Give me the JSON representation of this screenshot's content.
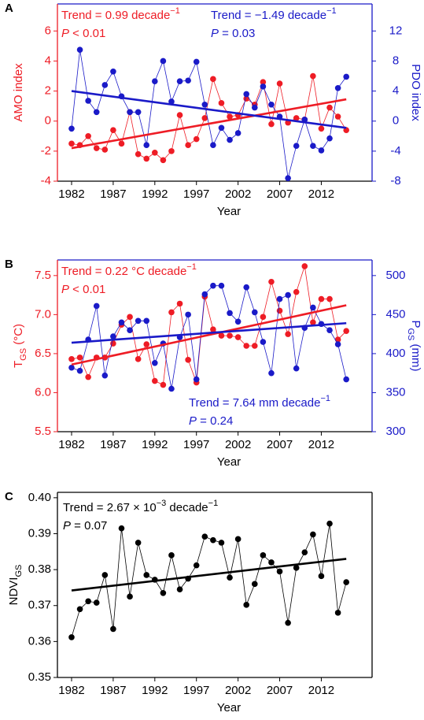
{
  "chart_data": [
    {
      "type": "line",
      "panel": "A",
      "x_label": "Year",
      "y_label": [
        {
          "text": "AMO index"
        }
      ],
      "y2_label": [
        {
          "text": "PDO index"
        }
      ],
      "x": [
        1982,
        1983,
        1984,
        1985,
        1986,
        1987,
        1988,
        1989,
        1990,
        1991,
        1992,
        1993,
        1994,
        1995,
        1996,
        1997,
        1998,
        1999,
        2000,
        2001,
        2002,
        2003,
        2004,
        2005,
        2006,
        2007,
        2008,
        2009,
        2010,
        2011,
        2012,
        2013,
        2014,
        2015
      ],
      "xlim": [
        1980.3,
        2018.1
      ],
      "xticks": [
        1982,
        1987,
        1992,
        1997,
        2002,
        2007,
        2012
      ],
      "ylim": [
        -4,
        7.8
      ],
      "yticks": [
        -4,
        -2,
        0,
        2,
        4,
        6
      ],
      "y2lim": [
        -8,
        15.6
      ],
      "y2ticks": [
        -8,
        -4,
        0,
        4,
        8,
        12
      ],
      "series": [
        {
          "color": "#ee1c25",
          "values": [
            -1.5,
            -1.6,
            -1.0,
            -1.8,
            -1.9,
            -0.6,
            -1.5,
            0.6,
            -2.2,
            -2.5,
            -2.1,
            -2.6,
            -2.0,
            0.4,
            -1.6,
            -1.2,
            0.2,
            2.8,
            1.2,
            0.3,
            0.4,
            1.5,
            1.1,
            2.6,
            -0.2,
            2.5,
            -0.1,
            0.2,
            0.1,
            3.0,
            -0.5,
            0.9,
            0.3,
            -0.6
          ]
        },
        {
          "color": "#1a1ac8",
          "axis": "y2",
          "values": [
            -1,
            9.5,
            2.7,
            1.2,
            4.8,
            6.6,
            3.3,
            1.2,
            1.2,
            -3.2,
            5.3,
            8,
            2.6,
            5.3,
            5.4,
            7.9,
            2.2,
            -3.2,
            -0.9,
            -2.5,
            -1.6,
            3.6,
            1.8,
            4.6,
            2.2,
            0.6,
            -7.6,
            -3.3,
            0.2,
            -3.3,
            -3.9,
            -2.3,
            4.4,
            5.9
          ]
        }
      ],
      "trend_lines": [
        {
          "color": "#ee1c25",
          "x": [
            1982,
            2015
          ],
          "values": [
            -1.8,
            1.45
          ]
        },
        {
          "color": "#1a1ac8",
          "axis": "y2",
          "x": [
            1982,
            2015
          ],
          "values": [
            4.0,
            -0.9
          ]
        }
      ],
      "annotations": [
        {
          "color": "#ee1c25",
          "lines": [
            [
              {
                "text": "Trend = 0.99 decade"
              },
              {
                "sup": "−1"
              }
            ],
            [
              {
                "italic": "P"
              },
              {
                "text": " < 0.01"
              }
            ]
          ]
        },
        {
          "color": "#1a1ac8",
          "lines": [
            [
              {
                "text": "Trend = −1.49 decade"
              },
              {
                "sup": "−1"
              }
            ],
            [
              {
                "italic": "P"
              },
              {
                "text": " = 0.03"
              }
            ]
          ]
        }
      ]
    },
    {
      "type": "line",
      "panel": "B",
      "x_label": "Year",
      "y_label": [
        {
          "text": "T"
        },
        {
          "sub": "GS"
        },
        {
          "text": " (°C)"
        }
      ],
      "y2_label": [
        {
          "text": "P"
        },
        {
          "sub": "GS"
        },
        {
          "text": " (mm)"
        }
      ],
      "x": [
        1982,
        1983,
        1984,
        1985,
        1986,
        1987,
        1988,
        1989,
        1990,
        1991,
        1992,
        1993,
        1994,
        1995,
        1996,
        1997,
        1998,
        1999,
        2000,
        2001,
        2002,
        2003,
        2004,
        2005,
        2006,
        2007,
        2008,
        2009,
        2010,
        2011,
        2012,
        2013,
        2014,
        2015
      ],
      "xlim": [
        1980.3,
        2018.1
      ],
      "xticks": [
        1982,
        1987,
        1992,
        1997,
        2002,
        2007,
        2012
      ],
      "ylim": [
        5.5,
        7.7
      ],
      "yticks": [
        5.5,
        {
          "value": 6,
          "label": "6.0"
        },
        6.5,
        {
          "value": 7,
          "label": "7.0"
        },
        7.5
      ],
      "y2lim": [
        300,
        520
      ],
      "y2ticks": [
        300,
        350,
        400,
        450,
        500
      ],
      "series": [
        {
          "color": "#ee1c25",
          "values": [
            6.43,
            6.45,
            6.2,
            6.45,
            6.45,
            6.63,
            6.87,
            6.97,
            6.43,
            6.62,
            6.15,
            6.1,
            7.03,
            7.14,
            6.42,
            6.13,
            7.23,
            6.81,
            6.73,
            6.73,
            6.71,
            6.6,
            6.6,
            6.97,
            7.42,
            7.05,
            6.75,
            7.29,
            7.62,
            6.9,
            7.2,
            7.2,
            6.68,
            6.79
          ]
        },
        {
          "color": "#1a1ac8",
          "axis": "y2",
          "values": [
            382,
            378,
            418,
            461,
            372,
            422,
            440,
            430,
            442,
            442,
            388,
            413,
            355,
            421,
            450,
            367,
            476,
            487,
            487,
            452,
            441,
            485,
            453,
            415,
            375,
            470,
            475,
            381,
            433,
            459,
            438,
            430,
            412,
            367
          ]
        }
      ],
      "trend_lines": [
        {
          "color": "#ee1c25",
          "x": [
            1982,
            2015
          ],
          "values": [
            6.36,
            7.12
          ]
        },
        {
          "color": "#1a1ac8",
          "axis": "y2",
          "x": [
            1982,
            2015
          ],
          "values": [
            414,
            439
          ]
        }
      ],
      "annotations": [
        {
          "color": "#ee1c25",
          "lines": [
            [
              {
                "text": "Trend = 0.22 °C decade"
              },
              {
                "sup": "−1"
              }
            ],
            [
              {
                "italic": "P"
              },
              {
                "text": " < 0.01"
              }
            ]
          ]
        },
        {
          "color": "#1a1ac8",
          "lines": [
            [
              {
                "text": "Trend = 7.64 mm decade"
              },
              {
                "sup": "−1"
              }
            ],
            [
              {
                "italic": "P"
              },
              {
                "text": " = 0.24"
              }
            ]
          ]
        }
      ]
    },
    {
      "type": "line",
      "panel": "C",
      "x_label": "Year",
      "y_label": [
        {
          "text": "NDVI"
        },
        {
          "sub": "GS"
        }
      ],
      "x": [
        1982,
        1983,
        1984,
        1985,
        1986,
        1987,
        1988,
        1989,
        1990,
        1991,
        1992,
        1993,
        1994,
        1995,
        1996,
        1997,
        1998,
        1999,
        2000,
        2001,
        2002,
        2003,
        2004,
        2005,
        2006,
        2007,
        2008,
        2009,
        2010,
        2011,
        2012,
        2013,
        2014,
        2015
      ],
      "xlim": [
        1980.3,
        2018.1
      ],
      "xticks": [
        1982,
        1987,
        1992,
        1997,
        2002,
        2007,
        2012
      ],
      "ylim": [
        0.35,
        0.4015
      ],
      "yticks": [
        0.35,
        0.36,
        0.37,
        0.38,
        0.39,
        {
          "value": 0.4,
          "label": "0.40"
        }
      ],
      "series": [
        {
          "color": "#000000",
          "values": [
            0.3612,
            0.369,
            0.3712,
            0.3708,
            0.3785,
            0.3635,
            0.3915,
            0.3725,
            0.3875,
            0.3785,
            0.3772,
            0.3735,
            0.384,
            0.3745,
            0.3775,
            0.3812,
            0.3892,
            0.3882,
            0.3875,
            0.3778,
            0.3885,
            0.3702,
            0.376,
            0.384,
            0.382,
            0.3795,
            0.3652,
            0.3805,
            0.3848,
            0.3898,
            0.3782,
            0.3928,
            0.368,
            0.3765
          ]
        }
      ],
      "trend_lines": [
        {
          "color": "#000000",
          "x": [
            1982,
            2015
          ],
          "values": [
            0.3742,
            0.383
          ]
        }
      ],
      "annotations": [
        {
          "color": "#000000",
          "lines": [
            [
              {
                "text": "Trend = 2.67 × 10"
              },
              {
                "sup": "−3"
              },
              {
                "text": " decade"
              },
              {
                "sup": "−1"
              }
            ],
            [
              {
                "italic": "P"
              },
              {
                "text": " = 0.07"
              }
            ]
          ]
        }
      ]
    }
  ]
}
